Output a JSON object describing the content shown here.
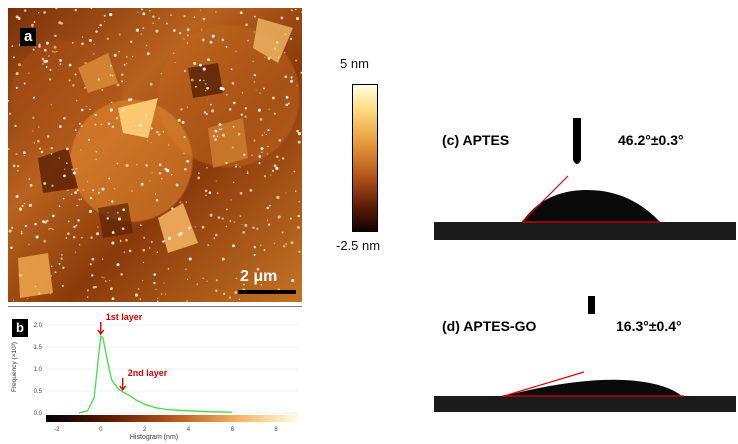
{
  "panel_a": {
    "label": "a",
    "scale_bar": "2 μm"
  },
  "colorbar": {
    "max_label": "5 nm",
    "min_label": "-2.5 nm"
  },
  "panel_b": {
    "label": "b",
    "annotations": [
      "1st layer",
      "2nd layer"
    ],
    "ylabel": "Frequency (×10³)",
    "xlabel": "Histogram (nm)",
    "y_ticks": [
      "2.0",
      "1.5",
      "1.0",
      "0.5",
      "0.0"
    ],
    "x_ticks": [
      "-2",
      "0",
      "2",
      "4",
      "6",
      "8"
    ],
    "curve_color": "#44dd44",
    "annotation_color": "#dd0000"
  },
  "panel_c": {
    "title": "(c) APTES",
    "angle": "46.2°±0.3°"
  },
  "panel_d": {
    "title": "(d) APTES-GO",
    "angle": "16.3°±0.4°"
  },
  "chart_data": {
    "type": "line",
    "x": [
      -1.0,
      -0.6,
      -0.3,
      -0.1,
      0.0,
      0.1,
      0.3,
      0.5,
      0.8,
      1.0,
      1.3,
      1.6,
      2.0,
      2.5,
      3.0,
      4.0,
      5.0,
      6.0
    ],
    "series": [
      {
        "values": [
          0.0,
          0.05,
          0.35,
          1.3,
          1.75,
          1.7,
          1.2,
          0.75,
          0.55,
          0.48,
          0.4,
          0.3,
          0.2,
          0.12,
          0.08,
          0.05,
          0.03,
          0.02
        ]
      }
    ],
    "xlim": [
      -2.5,
      9
    ],
    "ylim": [
      0,
      2.0
    ],
    "xlabel": "Histogram (nm)",
    "ylabel": "Frequency (×10³)",
    "annotations": [
      {
        "text": "1st layer",
        "x": 0
      },
      {
        "text": "2nd layer",
        "x": 1
      }
    ]
  }
}
